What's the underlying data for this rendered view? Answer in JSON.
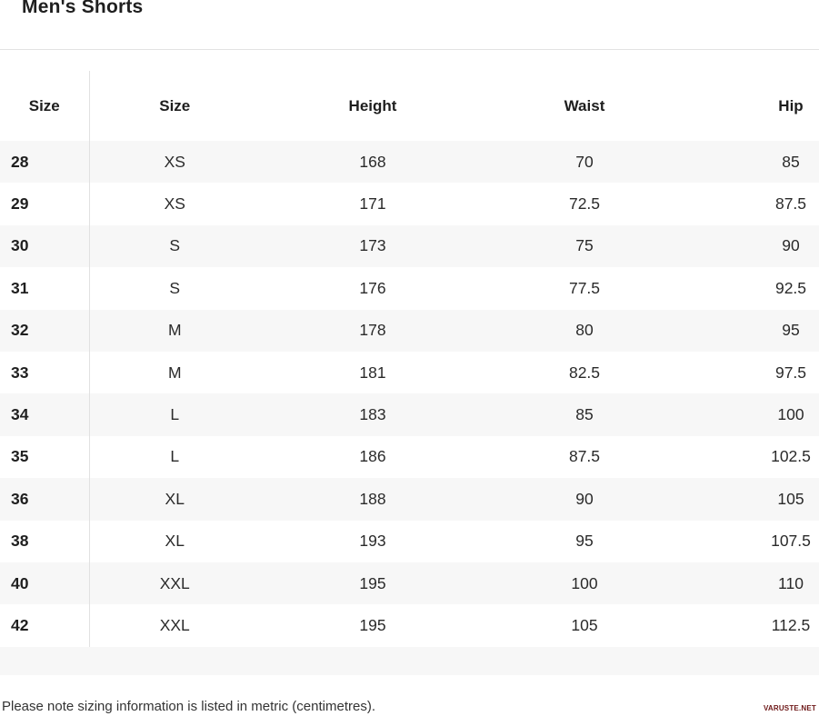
{
  "page": {
    "title": "Men's Shorts",
    "note": "Please note sizing information is listed in metric (centimetres).",
    "watermark": "VARUSTE.NET"
  },
  "table": {
    "columns": [
      "Size",
      "Size",
      "Height",
      "Waist",
      "Hip"
    ],
    "rows": [
      [
        "28",
        "XS",
        "168",
        "70",
        "85"
      ],
      [
        "29",
        "XS",
        "171",
        "72.5",
        "87.5"
      ],
      [
        "30",
        "S",
        "173",
        "75",
        "90"
      ],
      [
        "31",
        "S",
        "176",
        "77.5",
        "92.5"
      ],
      [
        "32",
        "M",
        "178",
        "80",
        "95"
      ],
      [
        "33",
        "M",
        "181",
        "82.5",
        "97.5"
      ],
      [
        "34",
        "L",
        "183",
        "85",
        "100"
      ],
      [
        "35",
        "L",
        "186",
        "87.5",
        "102.5"
      ],
      [
        "36",
        "XL",
        "188",
        "90",
        "105"
      ],
      [
        "38",
        "XL",
        "193",
        "95",
        "107.5"
      ],
      [
        "40",
        "XXL",
        "195",
        "100",
        "110"
      ],
      [
        "42",
        "XXL",
        "195",
        "105",
        "112.5"
      ]
    ]
  },
  "colors": {
    "row_stripe": "#f7f7f7",
    "divider": "#e1e1e1",
    "top_separator": "#e2e2e2",
    "text": "#222222",
    "watermark": "#6d1717"
  }
}
